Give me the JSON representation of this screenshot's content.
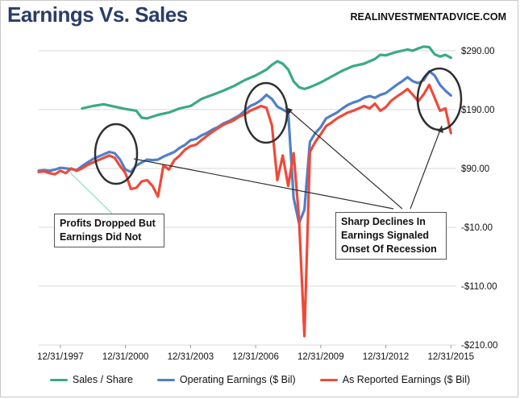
{
  "header": {
    "title": "Earnings Vs. Sales",
    "source": "REALINVESTMENTADVICE.COM"
  },
  "callouts": {
    "left": "Profits Dropped But Earnings Did Not",
    "right": "Sharp Declines In Earnings Signaled Onset Of Recession"
  },
  "colors": {
    "sales": "#3aaa85",
    "operating": "#4f7fc8",
    "reported": "#ee4a3a",
    "grid": "#d9d9d9",
    "annotation": "#2f2f2f"
  },
  "chart_data": {
    "type": "line",
    "title": "Earnings Vs. Sales",
    "xlabel": "",
    "ylabel": "",
    "xlim": [
      1997,
      2016.25
    ],
    "ylim": [
      -210,
      320
    ],
    "y_axis_position": "right",
    "y_ticks": [
      290,
      190,
      90,
      -10,
      -110,
      -210
    ],
    "y_tick_labels": [
      "$290.00",
      "$190.00",
      "$90.00",
      "-$10.00",
      "-$110.00",
      "-$210.00"
    ],
    "x_ticks": [
      1998,
      2001,
      2004,
      2007,
      2010,
      2013,
      2016
    ],
    "x_tick_labels": [
      "12/31/1997",
      "12/31/2000",
      "12/31/2003",
      "12/31/2006",
      "12/31/2009",
      "12/31/2012",
      "12/31/2015"
    ],
    "grid": "horizontal",
    "legend": "bottom",
    "series": [
      {
        "name": "Sales / Share",
        "color": "#3aaa85",
        "x": [
          1999.0,
          1999.5,
          2000.0,
          2000.5,
          2001.0,
          2001.5,
          2001.75,
          2002.0,
          2002.5,
          2003.0,
          2003.5,
          2004.0,
          2004.5,
          2005.0,
          2005.5,
          2006.0,
          2006.5,
          2007.0,
          2007.5,
          2007.75,
          2008.0,
          2008.25,
          2008.5,
          2008.75,
          2009.0,
          2009.25,
          2009.5,
          2009.75,
          2010.0,
          2010.5,
          2011.0,
          2011.5,
          2012.0,
          2012.5,
          2012.75,
          2013.0,
          2013.5,
          2014.0,
          2014.25,
          2014.5,
          2014.75,
          2015.0,
          2015.25,
          2015.5,
          2015.75,
          2016.0
        ],
        "y": [
          192,
          196,
          199,
          195,
          191,
          188,
          176,
          175,
          181,
          185,
          192,
          196,
          208,
          215,
          222,
          230,
          240,
          248,
          258,
          266,
          272,
          268,
          258,
          238,
          228,
          225,
          228,
          232,
          236,
          246,
          256,
          264,
          268,
          276,
          283,
          282,
          288,
          292,
          290,
          294,
          297,
          296,
          284,
          280,
          283,
          278
        ]
      },
      {
        "name": "Operating Earnings ($ Bil)",
        "color": "#4f7fc8",
        "x": [
          1997.0,
          1997.25,
          1997.5,
          1997.75,
          1998.0,
          1998.25,
          1998.5,
          1998.75,
          1999.0,
          1999.25,
          1999.5,
          1999.75,
          2000.0,
          2000.25,
          2000.5,
          2000.75,
          2001.0,
          2001.25,
          2001.5,
          2001.75,
          2002.0,
          2002.25,
          2002.5,
          2002.75,
          2003.0,
          2003.25,
          2003.5,
          2003.75,
          2004.0,
          2004.25,
          2004.5,
          2004.75,
          2005.0,
          2005.25,
          2005.5,
          2005.75,
          2006.0,
          2006.25,
          2006.5,
          2006.75,
          2007.0,
          2007.25,
          2007.5,
          2007.75,
          2008.0,
          2008.25,
          2008.5,
          2008.75,
          2009.0,
          2009.25,
          2009.5,
          2009.75,
          2010.0,
          2010.25,
          2010.5,
          2010.75,
          2011.0,
          2011.25,
          2011.5,
          2011.75,
          2012.0,
          2012.25,
          2012.5,
          2012.75,
          2013.0,
          2013.25,
          2013.5,
          2013.75,
          2014.0,
          2014.25,
          2014.5,
          2014.75,
          2015.0,
          2015.25,
          2015.5,
          2015.75,
          2016.0
        ],
        "y": [
          86,
          87,
          86,
          88,
          91,
          90,
          89,
          87,
          94,
          100,
          106,
          110,
          114,
          118,
          116,
          105,
          88,
          84,
          95,
          100,
          105,
          104,
          105,
          110,
          114,
          118,
          125,
          130,
          138,
          140,
          146,
          150,
          156,
          160,
          166,
          170,
          175,
          180,
          188,
          196,
          200,
          206,
          215,
          208,
          195,
          190,
          185,
          40,
          -3,
          20,
          135,
          150,
          160,
          175,
          180,
          185,
          192,
          198,
          202,
          205,
          210,
          213,
          210,
          215,
          218,
          225,
          232,
          238,
          245,
          238,
          235,
          240,
          255,
          248,
          232,
          222,
          214
        ]
      },
      {
        "name": "As Reported Earnings ($ Bil)",
        "color": "#ee4a3a",
        "x": [
          1997.0,
          1997.25,
          1997.5,
          1997.75,
          1998.0,
          1998.25,
          1998.5,
          1998.75,
          1999.0,
          1999.25,
          1999.5,
          1999.75,
          2000.0,
          2000.25,
          2000.5,
          2000.75,
          2001.0,
          2001.25,
          2001.5,
          2001.75,
          2002.0,
          2002.25,
          2002.5,
          2002.75,
          2003.0,
          2003.25,
          2003.5,
          2003.75,
          2004.0,
          2004.25,
          2004.5,
          2004.75,
          2005.0,
          2005.25,
          2005.5,
          2005.75,
          2006.0,
          2006.25,
          2006.5,
          2006.75,
          2007.0,
          2007.25,
          2007.5,
          2007.75,
          2008.0,
          2008.25,
          2008.5,
          2008.75,
          2009.0,
          2009.25,
          2009.5,
          2009.75,
          2010.0,
          2010.25,
          2010.5,
          2010.75,
          2011.0,
          2011.25,
          2011.5,
          2011.75,
          2012.0,
          2012.25,
          2012.5,
          2012.75,
          2013.0,
          2013.25,
          2013.5,
          2013.75,
          2014.0,
          2014.25,
          2014.5,
          2014.75,
          2015.0,
          2015.25,
          2015.5,
          2015.75,
          2016.0
        ],
        "y": [
          84,
          85,
          82,
          80,
          86,
          82,
          90,
          86,
          90,
          96,
          100,
          104,
          108,
          112,
          108,
          94,
          82,
          55,
          57,
          68,
          70,
          60,
          42,
          95,
          88,
          104,
          112,
          122,
          128,
          130,
          138,
          145,
          152,
          158,
          164,
          168,
          172,
          178,
          182,
          188,
          192,
          196,
          193,
          163,
          70,
          112,
          60,
          116,
          5,
          -195,
          118,
          135,
          148,
          162,
          168,
          175,
          180,
          185,
          188,
          192,
          196,
          192,
          200,
          188,
          194,
          205,
          212,
          218,
          225,
          215,
          204,
          216,
          232,
          210,
          188,
          192,
          150
        ]
      }
    ]
  }
}
